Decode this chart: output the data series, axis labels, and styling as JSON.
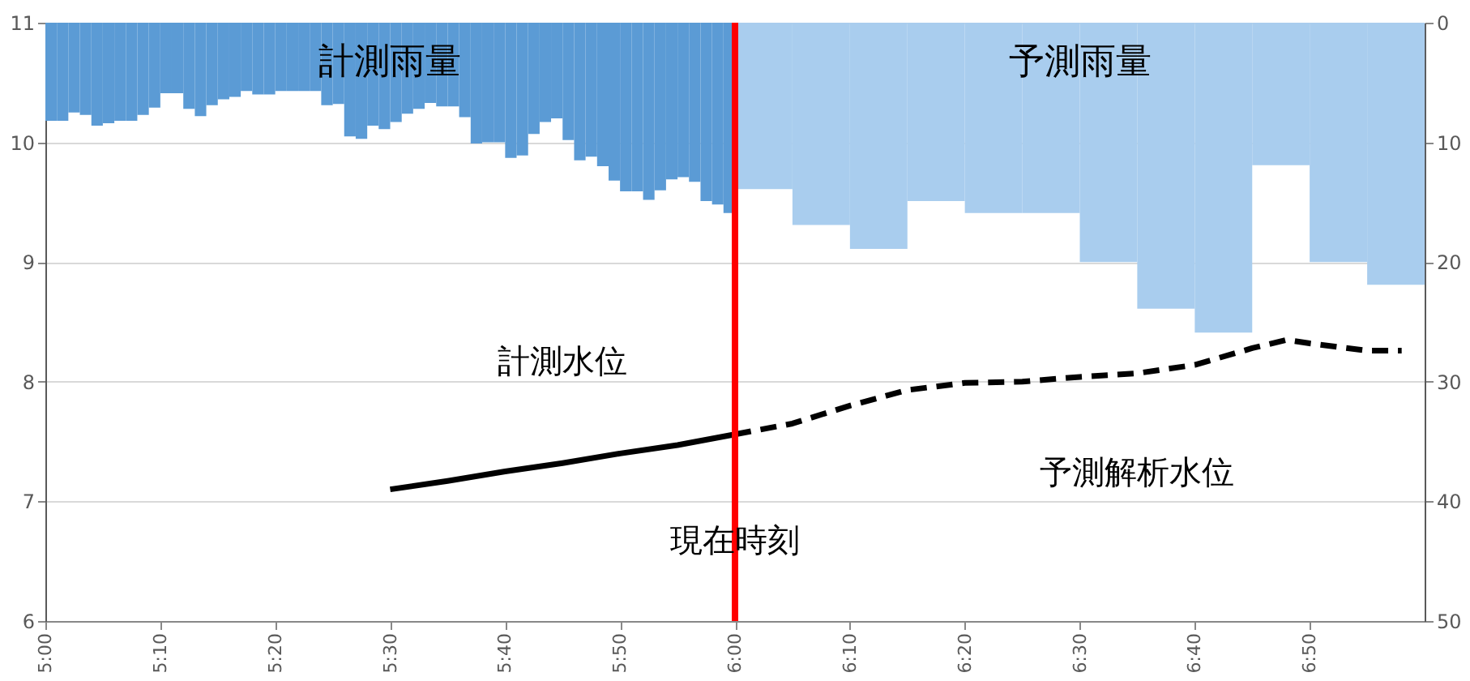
{
  "chart_data": {
    "type": "bar",
    "xlim": [
      5,
      7
    ],
    "xticks": [
      {
        "value": 5,
        "label": "5:00"
      },
      {
        "value": 5.1667,
        "label": "5:10"
      },
      {
        "value": 5.3333,
        "label": "5:20"
      },
      {
        "value": 5.5,
        "label": "5:30"
      },
      {
        "value": 5.6667,
        "label": "5:40"
      },
      {
        "value": 5.8333,
        "label": "5:50"
      },
      {
        "value": 6,
        "label": "6:00"
      },
      {
        "value": 6.1667,
        "label": "6:10"
      },
      {
        "value": 6.3333,
        "label": "6:20"
      },
      {
        "value": 6.5,
        "label": "6:30"
      },
      {
        "value": 6.6667,
        "label": "6:40"
      },
      {
        "value": 6.8333,
        "label": "6:50"
      }
    ],
    "ylim": [
      6,
      11
    ],
    "yticks": [
      6,
      7,
      8,
      9,
      10,
      11
    ],
    "y2lim": [
      50,
      0
    ],
    "y2ticks": [
      0,
      10,
      20,
      30,
      40,
      50
    ],
    "grid": "y",
    "legend": false,
    "series": [
      {
        "name": "計測雨量",
        "axis": "y2",
        "color": "#5b9bd5",
        "x": [
          5,
          5.0167,
          5.0333,
          5.05,
          5.0667,
          5.0833,
          5.1,
          5.1167,
          5.1333,
          5.15,
          5.1667,
          5.1833,
          5.2,
          5.2167,
          5.2333,
          5.25,
          5.2667,
          5.2833,
          5.3,
          5.3167,
          5.3333,
          5.35,
          5.3667,
          5.3833,
          5.4,
          5.4167,
          5.4333,
          5.45,
          5.4667,
          5.4833,
          5.5,
          5.5167,
          5.5333,
          5.55,
          5.5667,
          5.5833,
          5.6,
          5.6167,
          5.6333,
          5.65,
          5.6667,
          5.6833,
          5.7,
          5.7167,
          5.7333,
          5.75,
          5.7667,
          5.7833,
          5.8,
          5.8167,
          5.8333,
          5.85,
          5.8667,
          5.8833,
          5.9,
          5.9167,
          5.9333,
          5.95,
          5.9667,
          5.9833
        ],
        "values": [
          8.2,
          8.2,
          7.5,
          7.7,
          8.6,
          8.4,
          8.2,
          8.2,
          7.7,
          7.1,
          5.9,
          5.9,
          7.2,
          7.8,
          6.9,
          6.4,
          6.2,
          5.7,
          6.0,
          6.0,
          5.7,
          5.7,
          5.7,
          5.7,
          6.9,
          6.8,
          9.5,
          9.7,
          8.6,
          8.9,
          8.3,
          7.6,
          7.2,
          6.7,
          7.0,
          7.0,
          7.9,
          10.1,
          10.0,
          10.0,
          11.3,
          11.1,
          9.3,
          8.3,
          8.0,
          9.8,
          11.5,
          11.2,
          12.0,
          13.2,
          14.1,
          14.1,
          14.8,
          14.0,
          13.1,
          12.9,
          13.3,
          14.9,
          15.2,
          15.9
        ]
      },
      {
        "name": "予測雨量",
        "axis": "y2",
        "color": "#a9cdee",
        "x": [
          6,
          6.0833,
          6.1667,
          6.25,
          6.3333,
          6.4167,
          6.5,
          6.5833,
          6.6667,
          6.75,
          6.8333,
          6.9167
        ],
        "values": [
          13.9,
          16.9,
          18.9,
          14.9,
          15.9,
          15.9,
          20.0,
          23.9,
          25.9,
          11.9,
          20.0,
          21.9
        ]
      },
      {
        "name": "計測水位",
        "type": "line",
        "line_style": "solid",
        "color": "#000000",
        "x": [
          5.5,
          5.5833,
          5.6667,
          5.75,
          5.8333,
          5.9167,
          6
        ],
        "values": [
          7.1,
          7.17,
          7.25,
          7.32,
          7.4,
          7.47,
          7.56
        ]
      },
      {
        "name": "予測解析水位",
        "type": "line",
        "line_style": "dashed",
        "color": "#000000",
        "x": [
          6,
          6.0833,
          6.1667,
          6.25,
          6.3333,
          6.4167,
          6.5,
          6.5833,
          6.6667,
          6.75,
          6.8,
          6.8333,
          6.9167,
          6.9667
        ],
        "values": [
          7.56,
          7.65,
          7.8,
          7.93,
          7.99,
          8.0,
          8.04,
          8.07,
          8.14,
          8.28,
          8.35,
          8.32,
          8.26,
          8.26
        ]
      }
    ],
    "ref_lines": [
      {
        "axis": "x",
        "value": 6,
        "label": "現在時刻",
        "color": "#ff0000",
        "line_style": "solid"
      }
    ]
  }
}
